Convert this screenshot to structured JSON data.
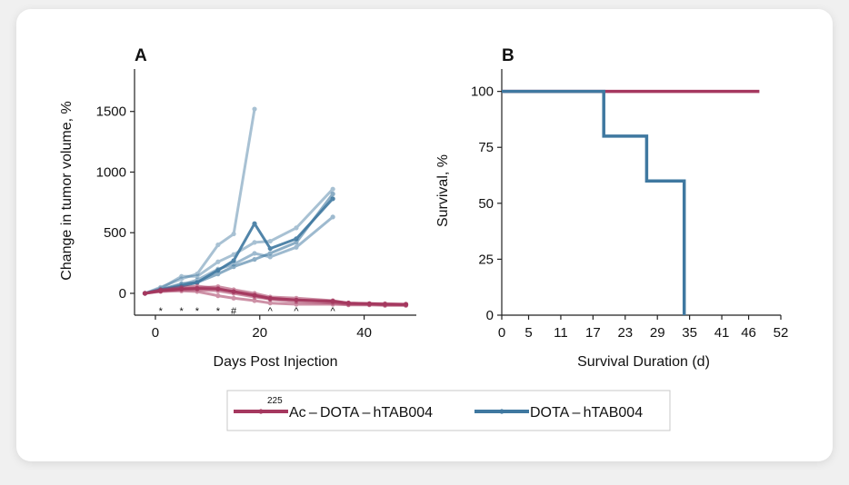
{
  "colors": {
    "ac": "#a5385f",
    "dota": "#3f78a0"
  },
  "legend": {
    "items": [
      {
        "sup": "225",
        "label": "Ac – DOTA – hTAB004",
        "color": "#a5385f"
      },
      {
        "sup": "",
        "label": "DOTA – hTAB004",
        "color": "#3f78a0"
      }
    ]
  },
  "chart_data": [
    {
      "panel": "A",
      "type": "line",
      "xlabel": "Days Post Injection",
      "ylabel": "Change in tumor volume, %",
      "xlim": [
        -4,
        50
      ],
      "ylim": [
        -180,
        1850
      ],
      "xticks": [
        "0",
        "20",
        "40"
      ],
      "yticks": [
        "0",
        "500",
        "1000",
        "1500"
      ],
      "grid": false,
      "significance_marks": [
        {
          "x": 1,
          "label": "*"
        },
        {
          "x": 5,
          "label": "*"
        },
        {
          "x": 8,
          "label": "*"
        },
        {
          "x": 12,
          "label": "*"
        },
        {
          "x": 15,
          "label": "#"
        },
        {
          "x": 22,
          "label": "^"
        },
        {
          "x": 27,
          "label": "^"
        },
        {
          "x": 34,
          "label": "^"
        }
      ],
      "series": [
        {
          "group": "dota",
          "alpha": 0.45,
          "x": [
            -2,
            1,
            5,
            8,
            12,
            15,
            19
          ],
          "y": [
            0,
            50,
            120,
            160,
            400,
            490,
            1520
          ]
        },
        {
          "group": "dota",
          "alpha": 0.45,
          "x": [
            -2,
            1,
            5,
            8,
            12,
            15,
            19,
            22,
            27,
            34
          ],
          "y": [
            0,
            40,
            140,
            140,
            260,
            320,
            420,
            430,
            540,
            860
          ]
        },
        {
          "group": "dota",
          "alpha": 0.5,
          "x": [
            -2,
            1,
            5,
            8,
            12,
            15,
            19,
            22,
            27,
            34
          ],
          "y": [
            0,
            30,
            70,
            110,
            200,
            240,
            330,
            300,
            380,
            630
          ]
        },
        {
          "group": "dota",
          "alpha": 0.6,
          "x": [
            -2,
            1,
            5,
            8,
            12,
            15,
            19,
            22,
            27,
            34
          ],
          "y": [
            0,
            30,
            80,
            90,
            160,
            220,
            280,
            330,
            420,
            820
          ]
        },
        {
          "group": "dota",
          "alpha": 0.9,
          "x": [
            -2,
            1,
            5,
            8,
            12,
            15,
            19,
            22,
            27,
            34
          ],
          "y": [
            0,
            30,
            60,
            90,
            190,
            270,
            575,
            370,
            450,
            780
          ]
        },
        {
          "group": "ac",
          "alpha": 0.55,
          "x": [
            -2,
            1,
            5,
            8,
            12,
            15,
            19,
            22,
            27,
            34,
            37,
            41,
            44,
            48
          ],
          "y": [
            0,
            15,
            20,
            15,
            -20,
            -40,
            -60,
            -80,
            -90,
            -90,
            -95,
            -95,
            -100,
            -100
          ]
        },
        {
          "group": "ac",
          "alpha": 0.55,
          "x": [
            -2,
            1,
            5,
            8,
            12,
            15,
            19,
            22,
            27,
            34,
            37,
            41,
            44,
            48
          ],
          "y": [
            0,
            30,
            50,
            60,
            40,
            10,
            -20,
            -50,
            -70,
            -80,
            -90,
            -90,
            -95,
            -95
          ]
        },
        {
          "group": "ac",
          "alpha": 0.55,
          "x": [
            -2,
            1,
            5,
            8,
            12,
            15,
            19,
            22,
            27,
            34,
            37,
            41,
            44,
            48
          ],
          "y": [
            0,
            25,
            40,
            45,
            55,
            30,
            0,
            -30,
            -40,
            -60,
            -80,
            -85,
            -85,
            -90
          ]
        },
        {
          "group": "ac",
          "alpha": 0.55,
          "x": [
            -2,
            1,
            5,
            8,
            12,
            15,
            19,
            22,
            27,
            34,
            37,
            41,
            44,
            48
          ],
          "y": [
            0,
            20,
            30,
            30,
            20,
            0,
            -30,
            -45,
            -55,
            -70,
            -85,
            -90,
            -90,
            -95
          ]
        },
        {
          "group": "ac",
          "alpha": 0.95,
          "x": [
            -2,
            1,
            5,
            8,
            12,
            15,
            19,
            22,
            27,
            34,
            37,
            41,
            44,
            48
          ],
          "y": [
            0,
            20,
            35,
            40,
            35,
            15,
            -15,
            -40,
            -55,
            -65,
            -80,
            -85,
            -90,
            -90
          ]
        }
      ]
    },
    {
      "panel": "B",
      "type": "line",
      "step": true,
      "xlabel": "Survival Duration (d)",
      "ylabel": "Survival, %",
      "xlim": [
        0,
        52
      ],
      "ylim": [
        0,
        110
      ],
      "xticks": [
        "0",
        "5",
        "11",
        "17",
        "23",
        "29",
        "35",
        "41",
        "46",
        "52"
      ],
      "yticks": [
        "0",
        "25",
        "50",
        "75",
        "100"
      ],
      "grid": false,
      "series": [
        {
          "group": "ac",
          "x": [
            0,
            48
          ],
          "y": [
            100,
            100
          ]
        },
        {
          "group": "dota",
          "x": [
            0,
            19,
            19,
            27,
            27,
            34,
            34
          ],
          "y": [
            100,
            100,
            80,
            80,
            60,
            60,
            0
          ]
        }
      ]
    }
  ]
}
